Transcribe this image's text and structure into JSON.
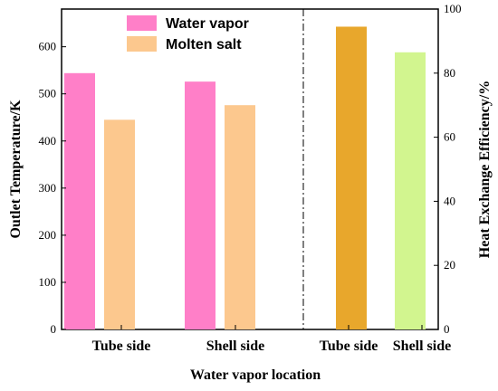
{
  "chart_data": {
    "type": "bar",
    "xlabel": "Water vapor location",
    "left_axis": {
      "label": "Outlet Temperature/K",
      "ylim": [
        0,
        680
      ],
      "ticks": [
        0,
        100,
        200,
        300,
        400,
        500,
        600
      ]
    },
    "right_axis": {
      "label": "Heat Exchange Efficiency/%",
      "ylim": [
        0,
        100
      ],
      "ticks": [
        0,
        20,
        40,
        60,
        80,
        100
      ]
    },
    "legend": {
      "placement": "top-center-left",
      "entries": [
        {
          "name": "Water vapor",
          "color": "#ff7fc8"
        },
        {
          "name": "Molten salt",
          "color": "#fcc88e"
        }
      ]
    },
    "temperature_panel": {
      "categories": [
        "Tube side",
        "Shell side"
      ],
      "series": [
        {
          "name": "Water vapor",
          "color": "#ff7fc8",
          "values": [
            544,
            526
          ]
        },
        {
          "name": "Molten salt",
          "color": "#fcc88e",
          "values": [
            445,
            476
          ]
        }
      ]
    },
    "efficiency_panel": {
      "categories": [
        "Tube side",
        "Shell side"
      ],
      "values": [
        94.5,
        86.5
      ],
      "colors": [
        "#e8a72c",
        "#d2f58f"
      ]
    },
    "grid": false,
    "divider": "dash-dot vertical line between panels"
  }
}
